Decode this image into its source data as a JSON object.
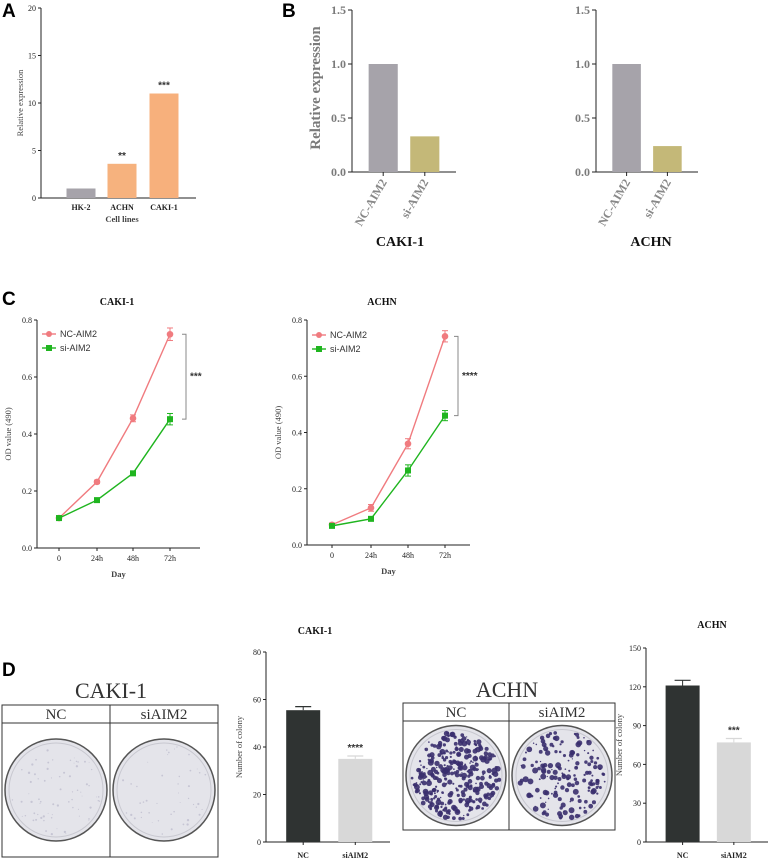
{
  "panel_labels": [
    "A",
    "B",
    "C",
    "D"
  ],
  "colors": {
    "grey_bar": "#a6a3aa",
    "olive_bar": "#c4b878",
    "orange_bar": "#f7b07c",
    "nc_line": "#f07b7f",
    "si_line": "#1fb51f",
    "dark_bar": "#2f3332",
    "light_bar": "#d8d8d8",
    "dish_bg": "#e4e4ea",
    "colony": "#3a2f6e"
  },
  "chart_data": [
    {
      "id": "A",
      "type": "bar",
      "title": "",
      "categories": [
        "HK-2",
        "ACHN",
        "CAKI-1"
      ],
      "values": [
        1.0,
        3.6,
        11.0
      ],
      "significance": [
        "",
        "**",
        "***"
      ],
      "ylabel": "Relative expression",
      "xlabel": "Cell lines",
      "ylim": [
        0,
        20
      ],
      "yticks": [
        "0",
        "5",
        "10",
        "15",
        "20"
      ]
    },
    {
      "id": "B1",
      "type": "bar",
      "title": "CAKI-1",
      "categories": [
        "NC-AIM2",
        "si-AIM2"
      ],
      "values": [
        1.0,
        0.33
      ],
      "ylabel": "Relative expression",
      "ylim": [
        0,
        1.5
      ],
      "yticks": [
        "0.0",
        "0.5",
        "1.0",
        "1.5"
      ]
    },
    {
      "id": "B2",
      "type": "bar",
      "title": "ACHN",
      "categories": [
        "NC-AIM2",
        "si-AIM2"
      ],
      "values": [
        1.0,
        0.24
      ],
      "ylabel": "",
      "ylim": [
        0,
        1.5
      ],
      "yticks": [
        "0.0",
        "0.5",
        "1.0",
        "1.5"
      ]
    },
    {
      "id": "C1",
      "type": "line",
      "title": "CAKI-1",
      "x": [
        "0",
        "24h",
        "48h",
        "72h"
      ],
      "series": [
        {
          "name": "NC-AIM2",
          "values": [
            0.105,
            0.232,
            0.455,
            0.75
          ],
          "errors": [
            0.008,
            0.006,
            0.012,
            0.022
          ]
        },
        {
          "name": "si-AIM2",
          "values": [
            0.105,
            0.168,
            0.262,
            0.452
          ],
          "errors": [
            0.008,
            0.006,
            0.008,
            0.02
          ]
        }
      ],
      "significance": "***",
      "ylabel": "OD value (490)",
      "xlabel": "Day",
      "ylim": [
        0,
        0.8
      ],
      "yticks": [
        "0.0",
        "0.2",
        "0.4",
        "0.6",
        "0.8"
      ]
    },
    {
      "id": "C2",
      "type": "line",
      "title": "ACHN",
      "x": [
        "0",
        "24h",
        "48h",
        "72h"
      ],
      "series": [
        {
          "name": "NC-AIM2",
          "values": [
            0.072,
            0.132,
            0.36,
            0.742
          ],
          "errors": [
            0.006,
            0.012,
            0.018,
            0.02
          ]
        },
        {
          "name": "si-AIM2",
          "values": [
            0.068,
            0.093,
            0.265,
            0.46
          ],
          "errors": [
            0.006,
            0.006,
            0.02,
            0.018
          ]
        }
      ],
      "significance": "****",
      "ylabel": "OD value (490)",
      "xlabel": "Day",
      "ylim": [
        0,
        0.8
      ],
      "yticks": [
        "0.0",
        "0.2",
        "0.4",
        "0.6",
        "0.8"
      ]
    },
    {
      "id": "D1",
      "type": "bar",
      "title": "CAKI-1",
      "categories": [
        "NC",
        "siAIM2"
      ],
      "values": [
        55.5,
        35.0
      ],
      "errors": [
        1.5,
        1.2
      ],
      "significance": [
        "",
        "****"
      ],
      "ylabel": "Number of colony",
      "ylim": [
        0,
        80
      ],
      "yticks": [
        "0",
        "20",
        "40",
        "60",
        "80"
      ]
    },
    {
      "id": "D2",
      "type": "bar",
      "title": "ACHN",
      "categories": [
        "NC",
        "siAIM2"
      ],
      "values": [
        121,
        77
      ],
      "errors": [
        4,
        3
      ],
      "significance": [
        "",
        "***"
      ],
      "ylabel": "Number of colony",
      "ylim": [
        0,
        150
      ],
      "yticks": [
        "0",
        "30",
        "60",
        "90",
        "120",
        "150"
      ]
    }
  ],
  "photos": [
    {
      "title": "CAKI-1",
      "left_label": "NC",
      "right_label": "siAIM2",
      "density": "sparse"
    },
    {
      "title": "ACHN",
      "left_label": "NC",
      "right_label": "siAIM2",
      "density": "dense"
    }
  ]
}
